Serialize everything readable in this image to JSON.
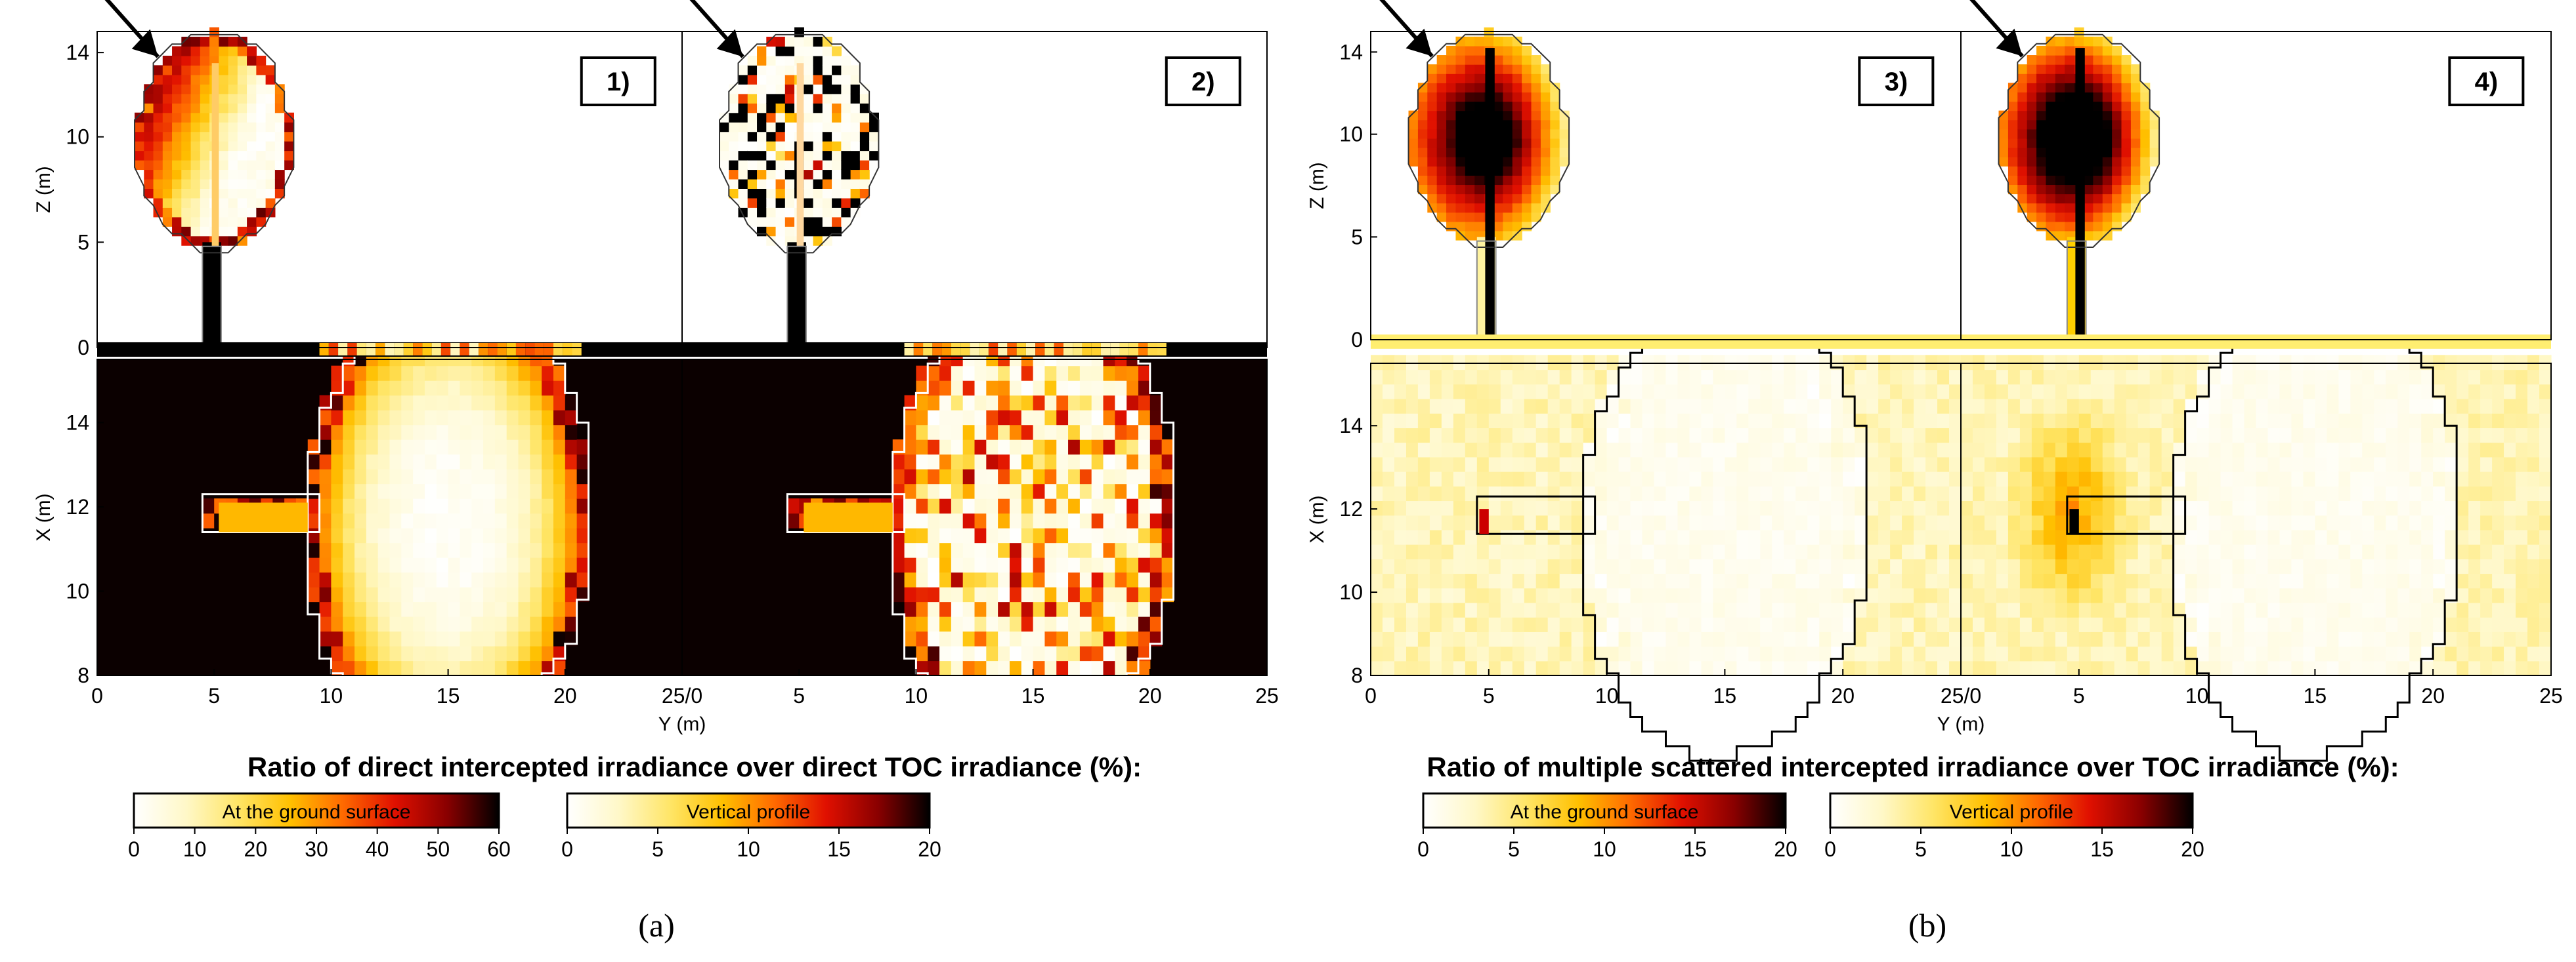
{
  "figure": {
    "panel_letters": [
      "(a)",
      "(b)"
    ],
    "panel_labels": [
      "1)",
      "2)",
      "3)",
      "4)"
    ]
  },
  "colors": {
    "background_dark": "#0b0000",
    "background_light_yellow": "#fdf3a6",
    "crown_outline_light": "#ffffff",
    "crown_outline_dark": "#000000",
    "hot_ramp": [
      "#ffffff",
      "#fff8c8",
      "#ffe566",
      "#ffc000",
      "#ff6a00",
      "#e01000",
      "#8a0000",
      "#000000"
    ]
  },
  "chart_data": [
    {
      "type": "heatmap",
      "group": "a",
      "subplots": [
        "1)",
        "2)"
      ],
      "description_vertical": "Vertical profile (Y–Z)",
      "description_ground": "At the ground surface (Y–X)",
      "z_axis": {
        "label": "Z (m)",
        "ticks": [
          "0",
          "5",
          "10",
          "14"
        ],
        "range": [
          0,
          15
        ]
      },
      "x_axis": {
        "label": "X (m)",
        "ticks": [
          "8",
          "10",
          "12",
          "14"
        ],
        "range": [
          8,
          15.5
        ]
      },
      "y_axis": {
        "label": "Y (m)",
        "ticks_left": [
          "0",
          "5",
          "10",
          "15",
          "20",
          "25/0"
        ],
        "ticks_right": [
          "5",
          "10",
          "15",
          "20",
          "25"
        ],
        "range": [
          0,
          25
        ]
      },
      "colorbar_title": "Ratio of direct intercepted irradiance over direct TOC irradiance (%):",
      "colorbars": [
        {
          "label": "At the ground surface",
          "ticks": [
            "0",
            "10",
            "20",
            "30",
            "40",
            "50",
            "60"
          ],
          "range": [
            0,
            60
          ]
        },
        {
          "label": "Vertical profile",
          "ticks": [
            "0",
            "5",
            "10",
            "15",
            "20"
          ],
          "range": [
            0,
            20
          ]
        }
      ]
    },
    {
      "type": "heatmap",
      "group": "b",
      "subplots": [
        "3)",
        "4)"
      ],
      "z_axis": {
        "label": "Z (m)",
        "ticks": [
          "0",
          "5",
          "10",
          "14"
        ],
        "range": [
          0,
          15
        ]
      },
      "x_axis": {
        "label": "X (m)",
        "ticks": [
          "8",
          "10",
          "12",
          "14"
        ],
        "range": [
          8,
          15.5
        ]
      },
      "y_axis": {
        "label": "Y (m)",
        "ticks_left": [
          "0",
          "5",
          "10",
          "15",
          "20",
          "25/0"
        ],
        "ticks_right": [
          "5",
          "10",
          "15",
          "20",
          "25"
        ],
        "range": [
          0,
          25
        ]
      },
      "colorbar_title": "Ratio of multiple scattered intercepted irradiance over TOC irradiance (%):",
      "colorbars": [
        {
          "label": "At the ground surface",
          "ticks": [
            "0",
            "5",
            "10",
            "15",
            "20"
          ],
          "range": [
            0,
            20
          ]
        },
        {
          "label": "Vertical profile",
          "ticks": [
            "0",
            "5",
            "10",
            "15",
            "20"
          ],
          "range": [
            0,
            20
          ]
        }
      ]
    }
  ]
}
